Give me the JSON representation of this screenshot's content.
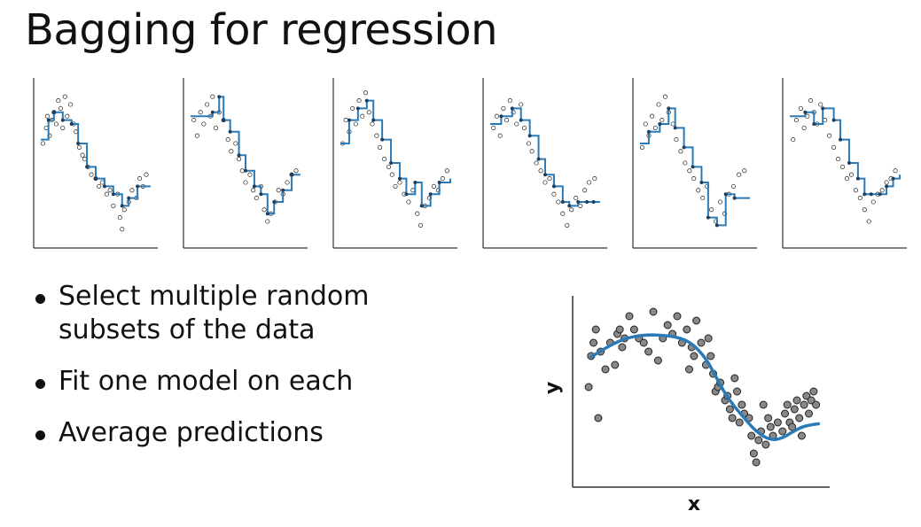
{
  "title": "Bagging for regression",
  "bullets": [
    "Select multiple random subsets of the data",
    "Fit one model on each",
    "Average predictions"
  ],
  "colors": {
    "fit_line": "#2a7ab8",
    "point_fill": "#888888",
    "point_stroke": "#222222",
    "axis": "#333333"
  },
  "chart_data": [
    {
      "type": "scatter",
      "role": "bootstrap-fit-1",
      "xlim": [
        0,
        1
      ],
      "ylim": [
        -2.2,
        1.8
      ],
      "points": [
        [
          0.02,
          0.3
        ],
        [
          0.05,
          0.7
        ],
        [
          0.06,
          1.0
        ],
        [
          0.08,
          0.5
        ],
        [
          0.1,
          0.9
        ],
        [
          0.12,
          1.1
        ],
        [
          0.14,
          0.8
        ],
        [
          0.16,
          1.4
        ],
        [
          0.18,
          1.2
        ],
        [
          0.2,
          0.7
        ],
        [
          0.22,
          1.5
        ],
        [
          0.24,
          1.0
        ],
        [
          0.27,
          1.3
        ],
        [
          0.3,
          0.8
        ],
        [
          0.32,
          0.6
        ],
        [
          0.35,
          0.2
        ],
        [
          0.38,
          0.0
        ],
        [
          0.4,
          -0.1
        ],
        [
          0.43,
          -0.3
        ],
        [
          0.46,
          -0.5
        ],
        [
          0.5,
          -0.6
        ],
        [
          0.53,
          -0.8
        ],
        [
          0.56,
          -0.7
        ],
        [
          0.6,
          -1.0
        ],
        [
          0.63,
          -0.9
        ],
        [
          0.66,
          -1.3
        ],
        [
          0.7,
          -1.0
        ],
        [
          0.72,
          -1.6
        ],
        [
          0.74,
          -1.9
        ],
        [
          0.76,
          -1.4
        ],
        [
          0.8,
          -1.2
        ],
        [
          0.83,
          -0.9
        ],
        [
          0.87,
          -1.1
        ],
        [
          0.9,
          -0.6
        ],
        [
          0.93,
          -0.8
        ],
        [
          0.96,
          -0.5
        ]
      ],
      "fit_steps": [
        [
          0.0,
          0.4
        ],
        [
          0.07,
          0.9
        ],
        [
          0.12,
          1.1
        ],
        [
          0.2,
          0.9
        ],
        [
          0.28,
          0.8
        ],
        [
          0.34,
          0.3
        ],
        [
          0.42,
          -0.3
        ],
        [
          0.5,
          -0.6
        ],
        [
          0.58,
          -0.8
        ],
        [
          0.66,
          -1.0
        ],
        [
          0.74,
          -1.3
        ],
        [
          0.8,
          -1.1
        ],
        [
          0.88,
          -0.8
        ],
        [
          1.0,
          -0.8
        ]
      ]
    },
    {
      "type": "scatter",
      "role": "bootstrap-fit-2",
      "xlim": [
        0,
        1
      ],
      "ylim": [
        -2.2,
        1.8
      ],
      "points": [
        [
          0.03,
          0.9
        ],
        [
          0.06,
          0.5
        ],
        [
          0.09,
          1.1
        ],
        [
          0.12,
          0.8
        ],
        [
          0.15,
          1.3
        ],
        [
          0.18,
          1.0
        ],
        [
          0.2,
          1.5
        ],
        [
          0.23,
          0.7
        ],
        [
          0.26,
          1.1
        ],
        [
          0.3,
          0.9
        ],
        [
          0.34,
          0.4
        ],
        [
          0.37,
          0.1
        ],
        [
          0.41,
          0.3
        ],
        [
          0.44,
          -0.1
        ],
        [
          0.47,
          -0.4
        ],
        [
          0.5,
          -0.7
        ],
        [
          0.54,
          -0.5
        ],
        [
          0.57,
          -0.9
        ],
        [
          0.6,
          -1.1
        ],
        [
          0.64,
          -0.8
        ],
        [
          0.67,
          -1.4
        ],
        [
          0.7,
          -1.7
        ],
        [
          0.73,
          -1.5
        ],
        [
          0.77,
          -1.2
        ],
        [
          0.8,
          -0.9
        ],
        [
          0.84,
          -1.0
        ],
        [
          0.88,
          -0.7
        ],
        [
          0.92,
          -0.5
        ],
        [
          0.96,
          -0.4
        ]
      ],
      "fit_steps": [
        [
          0.0,
          1.0
        ],
        [
          0.2,
          1.1
        ],
        [
          0.26,
          1.5
        ],
        [
          0.3,
          0.9
        ],
        [
          0.36,
          0.6
        ],
        [
          0.44,
          0.0
        ],
        [
          0.5,
          -0.4
        ],
        [
          0.58,
          -0.8
        ],
        [
          0.64,
          -1.0
        ],
        [
          0.7,
          -1.5
        ],
        [
          0.76,
          -1.2
        ],
        [
          0.84,
          -0.9
        ],
        [
          0.92,
          -0.5
        ],
        [
          1.0,
          -0.5
        ]
      ]
    },
    {
      "type": "scatter",
      "role": "bootstrap-fit-3",
      "xlim": [
        0,
        1
      ],
      "ylim": [
        -2.2,
        1.8
      ],
      "points": [
        [
          0.02,
          0.3
        ],
        [
          0.05,
          0.9
        ],
        [
          0.08,
          0.6
        ],
        [
          0.11,
          1.2
        ],
        [
          0.14,
          0.8
        ],
        [
          0.17,
          1.4
        ],
        [
          0.2,
          1.0
        ],
        [
          0.23,
          1.6
        ],
        [
          0.26,
          1.1
        ],
        [
          0.29,
          0.8
        ],
        [
          0.33,
          0.5
        ],
        [
          0.36,
          0.2
        ],
        [
          0.4,
          -0.1
        ],
        [
          0.44,
          -0.3
        ],
        [
          0.47,
          -0.5
        ],
        [
          0.5,
          -0.8
        ],
        [
          0.54,
          -0.7
        ],
        [
          0.58,
          -1.0
        ],
        [
          0.62,
          -1.2
        ],
        [
          0.66,
          -0.9
        ],
        [
          0.7,
          -1.5
        ],
        [
          0.73,
          -1.8
        ],
        [
          0.77,
          -1.3
        ],
        [
          0.81,
          -1.1
        ],
        [
          0.85,
          -0.8
        ],
        [
          0.89,
          -0.9
        ],
        [
          0.93,
          -0.6
        ],
        [
          0.97,
          -0.4
        ]
      ],
      "fit_steps": [
        [
          0.0,
          0.3
        ],
        [
          0.08,
          0.9
        ],
        [
          0.16,
          1.2
        ],
        [
          0.24,
          1.4
        ],
        [
          0.3,
          0.9
        ],
        [
          0.38,
          0.4
        ],
        [
          0.46,
          -0.2
        ],
        [
          0.54,
          -0.6
        ],
        [
          0.6,
          -1.0
        ],
        [
          0.68,
          -0.7
        ],
        [
          0.74,
          -1.3
        ],
        [
          0.82,
          -1.0
        ],
        [
          0.9,
          -0.7
        ],
        [
          1.0,
          -0.6
        ]
      ]
    },
    {
      "type": "scatter",
      "role": "bootstrap-fit-4",
      "xlim": [
        0,
        1
      ],
      "ylim": [
        -2.2,
        1.8
      ],
      "points": [
        [
          0.03,
          0.7
        ],
        [
          0.06,
          1.0
        ],
        [
          0.09,
          0.5
        ],
        [
          0.12,
          1.2
        ],
        [
          0.15,
          0.9
        ],
        [
          0.18,
          1.4
        ],
        [
          0.21,
          1.1
        ],
        [
          0.24,
          0.8
        ],
        [
          0.28,
          1.3
        ],
        [
          0.31,
          0.7
        ],
        [
          0.35,
          0.3
        ],
        [
          0.38,
          0.1
        ],
        [
          0.42,
          -0.2
        ],
        [
          0.46,
          -0.4
        ],
        [
          0.5,
          -0.7
        ],
        [
          0.54,
          -0.6
        ],
        [
          0.58,
          -1.0
        ],
        [
          0.62,
          -1.2
        ],
        [
          0.66,
          -1.5
        ],
        [
          0.7,
          -1.8
        ],
        [
          0.74,
          -1.4
        ],
        [
          0.78,
          -1.1
        ],
        [
          0.82,
          -1.3
        ],
        [
          0.86,
          -0.9
        ],
        [
          0.9,
          -0.7
        ],
        [
          0.95,
          -0.6
        ]
      ],
      "fit_steps": [
        [
          0.0,
          0.8
        ],
        [
          0.1,
          1.0
        ],
        [
          0.2,
          1.2
        ],
        [
          0.28,
          0.9
        ],
        [
          0.36,
          0.5
        ],
        [
          0.44,
          -0.1
        ],
        [
          0.5,
          -0.5
        ],
        [
          0.58,
          -0.8
        ],
        [
          0.66,
          -1.2
        ],
        [
          0.72,
          -1.3
        ],
        [
          0.8,
          -1.2
        ],
        [
          0.88,
          -1.2
        ],
        [
          0.94,
          -1.2
        ],
        [
          1.0,
          -1.2
        ]
      ]
    },
    {
      "type": "scatter",
      "role": "bootstrap-fit-5",
      "xlim": [
        0,
        1
      ],
      "ylim": [
        -2.2,
        1.8
      ],
      "points": [
        [
          0.02,
          0.2
        ],
        [
          0.05,
          0.8
        ],
        [
          0.08,
          0.5
        ],
        [
          0.11,
          1.0
        ],
        [
          0.14,
          0.7
        ],
        [
          0.17,
          1.3
        ],
        [
          0.2,
          0.9
        ],
        [
          0.23,
          1.5
        ],
        [
          0.26,
          1.1
        ],
        [
          0.3,
          0.8
        ],
        [
          0.33,
          0.4
        ],
        [
          0.37,
          0.1
        ],
        [
          0.41,
          -0.2
        ],
        [
          0.45,
          -0.4
        ],
        [
          0.49,
          -0.6
        ],
        [
          0.53,
          -0.9
        ],
        [
          0.57,
          -1.1
        ],
        [
          0.61,
          -0.8
        ],
        [
          0.65,
          -1.4
        ],
        [
          0.69,
          -1.7
        ],
        [
          0.73,
          -1.2
        ],
        [
          0.77,
          -1.5
        ],
        [
          0.81,
          -1.0
        ],
        [
          0.85,
          -0.8
        ],
        [
          0.9,
          -0.5
        ],
        [
          0.95,
          -0.4
        ]
      ],
      "fit_steps": [
        [
          0.0,
          0.3
        ],
        [
          0.08,
          0.6
        ],
        [
          0.18,
          0.8
        ],
        [
          0.26,
          1.2
        ],
        [
          0.32,
          0.7
        ],
        [
          0.4,
          0.2
        ],
        [
          0.48,
          -0.3
        ],
        [
          0.56,
          -0.7
        ],
        [
          0.62,
          -1.6
        ],
        [
          0.7,
          -1.8
        ],
        [
          0.78,
          -1.0
        ],
        [
          0.86,
          -1.1
        ],
        [
          1.0,
          -1.1
        ]
      ]
    },
    {
      "type": "scatter",
      "role": "bootstrap-fit-6",
      "xlim": [
        0,
        1
      ],
      "ylim": [
        -2.2,
        1.8
      ],
      "points": [
        [
          0.03,
          0.4
        ],
        [
          0.06,
          0.9
        ],
        [
          0.1,
          1.2
        ],
        [
          0.13,
          0.7
        ],
        [
          0.16,
          1.0
        ],
        [
          0.19,
          1.4
        ],
        [
          0.22,
          1.1
        ],
        [
          0.25,
          0.8
        ],
        [
          0.28,
          1.3
        ],
        [
          0.32,
          0.9
        ],
        [
          0.36,
          0.5
        ],
        [
          0.4,
          0.2
        ],
        [
          0.44,
          -0.1
        ],
        [
          0.48,
          -0.3
        ],
        [
          0.52,
          -0.6
        ],
        [
          0.56,
          -0.5
        ],
        [
          0.6,
          -0.9
        ],
        [
          0.64,
          -1.1
        ],
        [
          0.68,
          -1.4
        ],
        [
          0.72,
          -1.7
        ],
        [
          0.76,
          -1.2
        ],
        [
          0.8,
          -1.0
        ],
        [
          0.84,
          -0.9
        ],
        [
          0.88,
          -0.7
        ],
        [
          0.92,
          -0.6
        ],
        [
          0.96,
          -0.4
        ]
      ],
      "fit_steps": [
        [
          0.0,
          1.0
        ],
        [
          0.14,
          1.1
        ],
        [
          0.22,
          0.8
        ],
        [
          0.3,
          1.2
        ],
        [
          0.4,
          0.9
        ],
        [
          0.46,
          0.4
        ],
        [
          0.54,
          -0.2
        ],
        [
          0.62,
          -0.6
        ],
        [
          0.68,
          -1.0
        ],
        [
          0.74,
          -1.0
        ],
        [
          0.82,
          -1.0
        ],
        [
          0.88,
          -0.8
        ],
        [
          0.94,
          -0.6
        ],
        [
          1.0,
          -0.5
        ]
      ]
    },
    {
      "type": "scatter",
      "role": "averaged-fit",
      "xlabel": "x",
      "ylabel": "y",
      "xlim": [
        0,
        1
      ],
      "ylim": [
        -2.2,
        1.8
      ],
      "points": [
        [
          0.03,
          -0.1
        ],
        [
          0.04,
          0.6
        ],
        [
          0.05,
          0.9
        ],
        [
          0.06,
          1.2
        ],
        [
          0.07,
          -0.8
        ],
        [
          0.08,
          0.7
        ],
        [
          0.1,
          0.3
        ],
        [
          0.12,
          0.9
        ],
        [
          0.14,
          0.4
        ],
        [
          0.15,
          1.1
        ],
        [
          0.16,
          1.2
        ],
        [
          0.17,
          0.8
        ],
        [
          0.18,
          1.0
        ],
        [
          0.2,
          1.5
        ],
        [
          0.22,
          1.2
        ],
        [
          0.24,
          1.0
        ],
        [
          0.26,
          0.9
        ],
        [
          0.28,
          0.7
        ],
        [
          0.3,
          1.6
        ],
        [
          0.32,
          0.5
        ],
        [
          0.34,
          1.0
        ],
        [
          0.36,
          1.3
        ],
        [
          0.38,
          1.1
        ],
        [
          0.4,
          1.5
        ],
        [
          0.42,
          0.9
        ],
        [
          0.44,
          1.2
        ],
        [
          0.45,
          0.3
        ],
        [
          0.46,
          0.8
        ],
        [
          0.47,
          0.6
        ],
        [
          0.48,
          1.4
        ],
        [
          0.5,
          0.9
        ],
        [
          0.52,
          0.4
        ],
        [
          0.53,
          1.0
        ],
        [
          0.54,
          0.6
        ],
        [
          0.55,
          0.2
        ],
        [
          0.56,
          -0.2
        ],
        [
          0.57,
          -0.1
        ],
        [
          0.58,
          0.0
        ],
        [
          0.6,
          -0.4
        ],
        [
          0.61,
          -0.3
        ],
        [
          0.62,
          -0.6
        ],
        [
          0.63,
          -0.8
        ],
        [
          0.64,
          0.1
        ],
        [
          0.65,
          -0.2
        ],
        [
          0.66,
          -0.9
        ],
        [
          0.67,
          -0.5
        ],
        [
          0.68,
          -0.7
        ],
        [
          0.7,
          -0.8
        ],
        [
          0.71,
          -1.2
        ],
        [
          0.72,
          -1.6
        ],
        [
          0.73,
          -1.8
        ],
        [
          0.74,
          -1.3
        ],
        [
          0.75,
          -1.1
        ],
        [
          0.76,
          -0.5
        ],
        [
          0.77,
          -1.4
        ],
        [
          0.78,
          -0.8
        ],
        [
          0.79,
          -1.0
        ],
        [
          0.8,
          -1.2
        ],
        [
          0.82,
          -0.9
        ],
        [
          0.84,
          -1.1
        ],
        [
          0.85,
          -0.7
        ],
        [
          0.86,
          -0.5
        ],
        [
          0.87,
          -0.9
        ],
        [
          0.88,
          -1.0
        ],
        [
          0.89,
          -0.6
        ],
        [
          0.9,
          -0.4
        ],
        [
          0.91,
          -0.8
        ],
        [
          0.92,
          -1.2
        ],
        [
          0.93,
          -0.5
        ],
        [
          0.94,
          -0.3
        ],
        [
          0.95,
          -0.7
        ],
        [
          0.96,
          -0.4
        ],
        [
          0.97,
          -0.2
        ],
        [
          0.98,
          -0.5
        ]
      ],
      "fit_curve": [
        [
          0.04,
          0.58
        ],
        [
          0.1,
          0.78
        ],
        [
          0.16,
          0.95
        ],
        [
          0.22,
          1.05
        ],
        [
          0.28,
          1.08
        ],
        [
          0.34,
          1.07
        ],
        [
          0.4,
          1.03
        ],
        [
          0.46,
          0.9
        ],
        [
          0.52,
          0.55
        ],
        [
          0.56,
          0.15
        ],
        [
          0.6,
          -0.25
        ],
        [
          0.64,
          -0.55
        ],
        [
          0.68,
          -0.8
        ],
        [
          0.72,
          -1.05
        ],
        [
          0.76,
          -1.22
        ],
        [
          0.8,
          -1.3
        ],
        [
          0.84,
          -1.25
        ],
        [
          0.88,
          -1.12
        ],
        [
          0.92,
          -1.0
        ],
        [
          0.96,
          -0.95
        ],
        [
          0.99,
          -0.93
        ]
      ]
    }
  ]
}
